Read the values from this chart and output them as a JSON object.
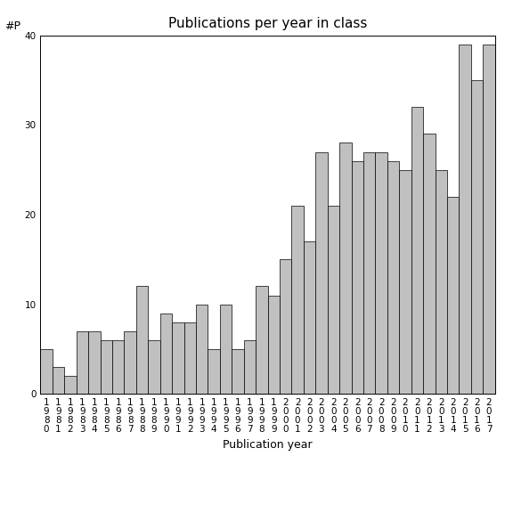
{
  "title": "Publications per year in class",
  "xlabel": "Publication year",
  "ylabel": "#P",
  "years": [
    1980,
    1981,
    1982,
    1983,
    1984,
    1985,
    1986,
    1987,
    1988,
    1989,
    1990,
    1991,
    1992,
    1993,
    1994,
    1995,
    1996,
    1997,
    1998,
    1999,
    2000,
    2001,
    2002,
    2003,
    2004,
    2005,
    2006,
    2007,
    2008,
    2009,
    2010,
    2011,
    2012,
    2013,
    2014,
    2015,
    2016,
    2017
  ],
  "values": [
    5,
    3,
    2,
    7,
    7,
    6,
    6,
    7,
    12,
    6,
    9,
    8,
    8,
    10,
    5,
    10,
    5,
    6,
    12,
    11,
    15,
    21,
    17,
    27,
    21,
    28,
    26,
    27,
    27,
    26,
    25,
    32,
    29,
    25,
    22,
    39,
    35,
    39
  ],
  "bar_color": "#c0c0c0",
  "bar_edge_color": "#000000",
  "ylim": [
    0,
    40
  ],
  "yticks": [
    0,
    10,
    20,
    30,
    40
  ],
  "background_color": "#ffffff",
  "title_fontsize": 11,
  "axis_label_fontsize": 9,
  "tick_fontsize": 7.5
}
